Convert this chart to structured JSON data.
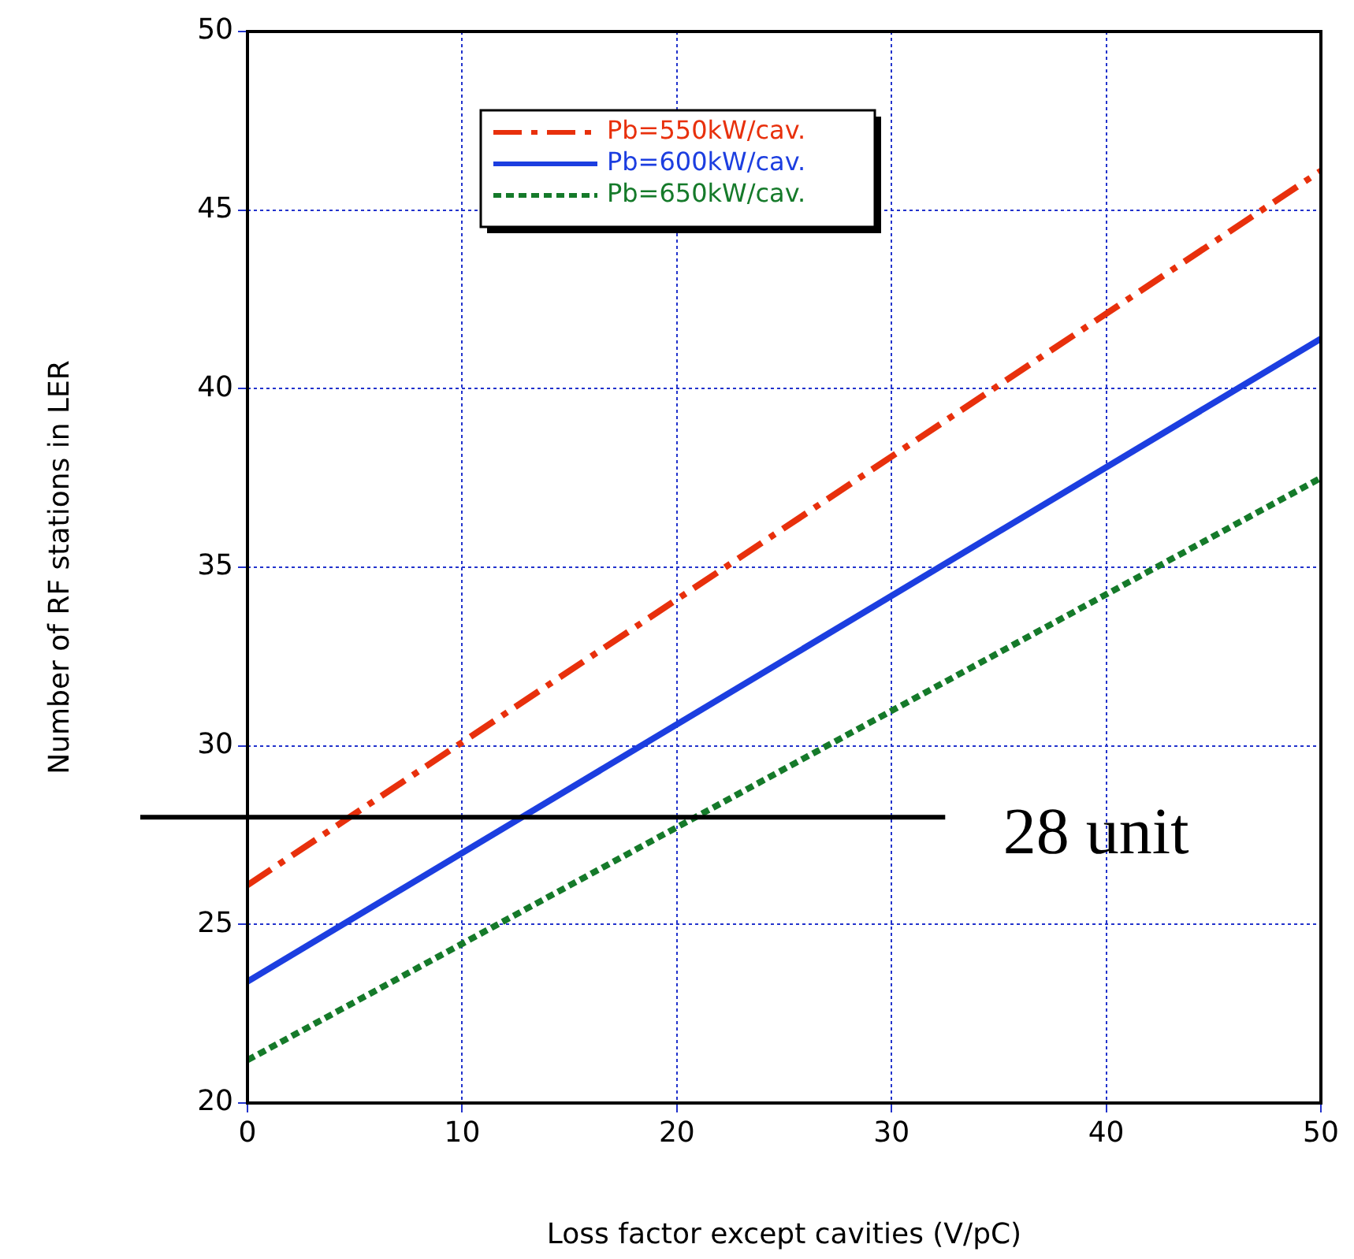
{
  "chart_data": {
    "type": "line",
    "xlabel": "Loss factor except cavities (V/pC)",
    "ylabel": "Number of RF stations in LER",
    "x": [
      0,
      50
    ],
    "series": [
      {
        "name": "Pb=550kW/cav.",
        "color": "#e8300c",
        "values": [
          26.1,
          46.1
        ],
        "line_style": "dashed"
      },
      {
        "name": "Pb=600kW/cav.",
        "color": "#1c3ee0",
        "values": [
          23.4,
          41.4
        ],
        "line_style": "solid"
      },
      {
        "name": "Pb=650kW/cav.",
        "color": "#157a2a",
        "values": [
          21.2,
          37.5
        ],
        "line_style": "dotted"
      }
    ],
    "xlim": [
      0,
      50
    ],
    "xticks": [
      0,
      10,
      20,
      30,
      40,
      50
    ],
    "ylim": [
      20,
      50
    ],
    "yticks": [
      20,
      25,
      30,
      35,
      40,
      45,
      50
    ],
    "grid": true,
    "legend": "top",
    "marker": "none",
    "ref_lines": [
      {
        "axis": "y",
        "value": 28,
        "label": "28 unit",
        "color": "#000000"
      }
    ]
  }
}
